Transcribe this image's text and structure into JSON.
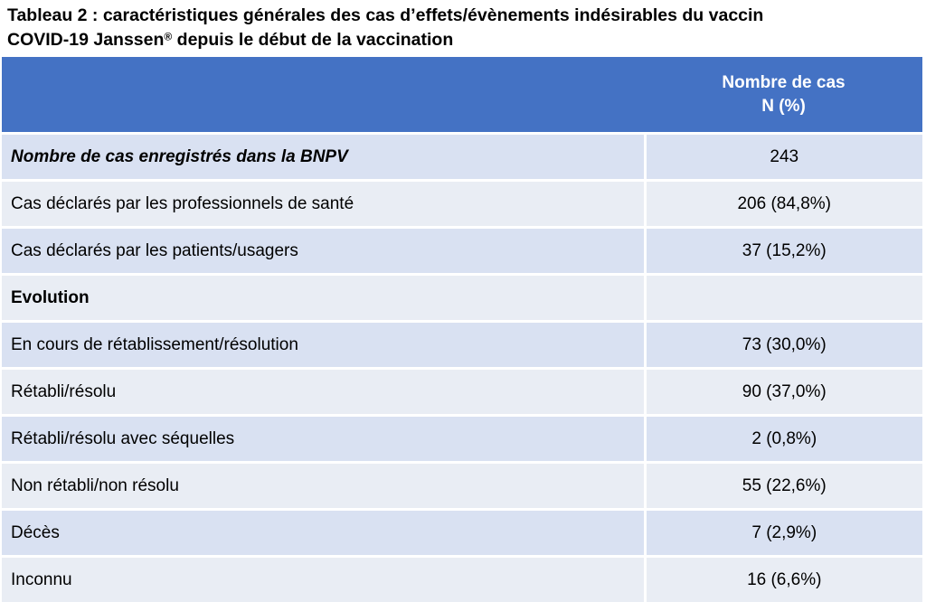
{
  "title": {
    "line1": "Tableau 2 : caractéristiques générales des cas d’effets/évènements indésirables du vaccin",
    "line2_before": "COVID-19 Janssen",
    "line2_mark": "®",
    "line2_after": " depuis le début de la vaccination"
  },
  "table": {
    "header": {
      "col1": "",
      "col2_line1": "Nombre de cas",
      "col2_line2": "N (%)"
    },
    "rows": [
      {
        "label": "Nombre de cas enregistrés dans la BNPV",
        "value": "243"
      },
      {
        "label": "Cas déclarés par les professionnels de santé",
        "value": "206 (84,8%)"
      },
      {
        "label": "Cas déclarés par les patients/usagers",
        "value": "37 (15,2%)"
      },
      {
        "label": "Evolution",
        "value": ""
      },
      {
        "label": "En cours de rétablissement/résolution",
        "value": "73 (30,0%)"
      },
      {
        "label": "Rétabli/résolu",
        "value": "90 (37,0%)"
      },
      {
        "label": "Rétabli/résolu avec séquelles",
        "value": "2 (0,8%)"
      },
      {
        "label": "Non rétabli/non résolu",
        "value": "55 (22,6%)"
      },
      {
        "label": "Décès",
        "value": "7 (2,9%)"
      },
      {
        "label": "Inconnu",
        "value": "16 (6,6%)"
      }
    ]
  },
  "colors": {
    "header_bg": "#4472c4",
    "row_odd_bg": "#d9e1f2",
    "row_even_bg": "#e9edf4"
  }
}
